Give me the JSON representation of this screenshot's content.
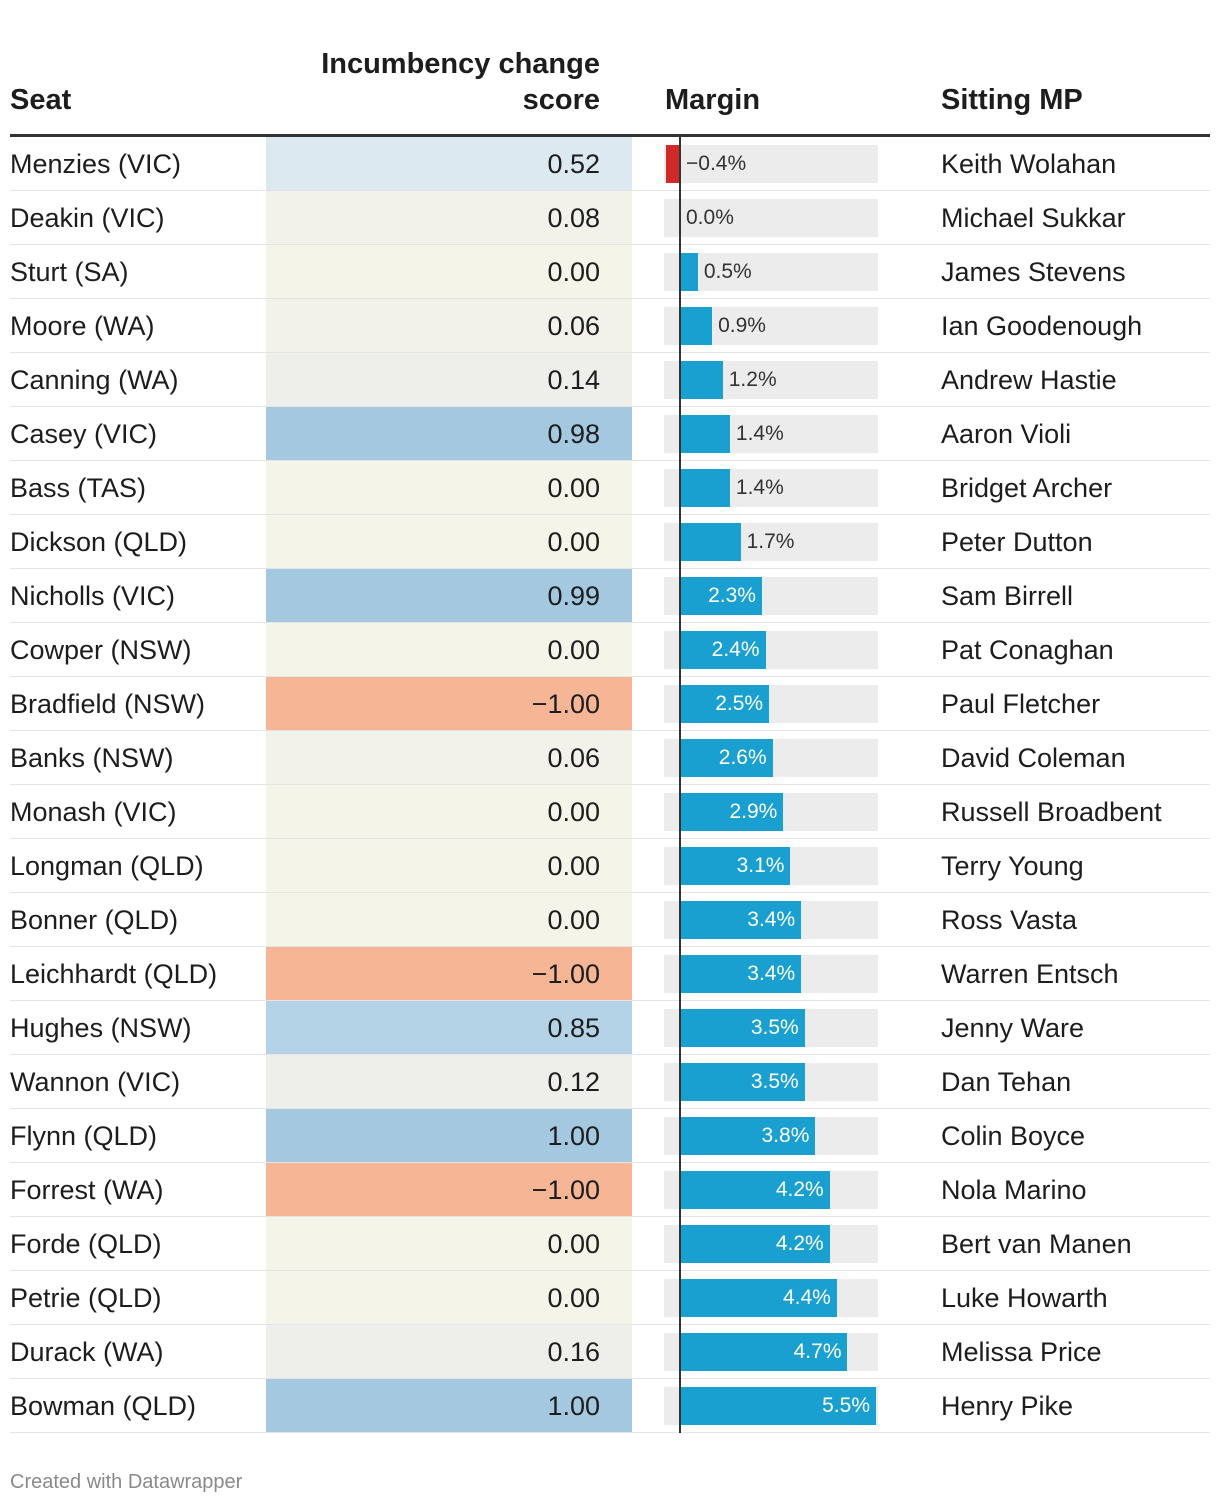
{
  "headers": {
    "seat": "Seat",
    "score_line1": "Incumbency change",
    "score_line2": "score",
    "margin": "Margin",
    "mp": "Sitting MP"
  },
  "credit": "Created with Datawrapper",
  "colors": {
    "positive_bar": "#1aa0d0",
    "negative_bar": "#cf2a27",
    "track": "#ececec"
  },
  "chart_data": {
    "type": "table",
    "columns": [
      "Seat",
      "Incumbency change score",
      "Margin",
      "Sitting MP"
    ],
    "margin_scale_max": 5.5,
    "rows": [
      {
        "seat": "Menzies (VIC)",
        "score": "0.52",
        "score_color": "#dce9f0",
        "margin": -0.4,
        "margin_label": "−0.4%",
        "mp": "Keith Wolahan"
      },
      {
        "seat": "Deakin (VIC)",
        "score": "0.08",
        "score_color": "#f2f2ea",
        "margin": 0.0,
        "margin_label": "0.0%",
        "mp": "Michael Sukkar"
      },
      {
        "seat": "Sturt (SA)",
        "score": "0.00",
        "score_color": "#f5f4e8",
        "margin": 0.5,
        "margin_label": "0.5%",
        "mp": "James Stevens"
      },
      {
        "seat": "Moore (WA)",
        "score": "0.06",
        "score_color": "#f2f2ea",
        "margin": 0.9,
        "margin_label": "0.9%",
        "mp": "Ian Goodenough"
      },
      {
        "seat": "Canning (WA)",
        "score": "0.14",
        "score_color": "#eeefea",
        "margin": 1.2,
        "margin_label": "1.2%",
        "mp": "Andrew Hastie"
      },
      {
        "seat": "Casey (VIC)",
        "score": "0.98",
        "score_color": "#a3c8e0",
        "margin": 1.4,
        "margin_label": "1.4%",
        "mp": "Aaron Violi"
      },
      {
        "seat": "Bass (TAS)",
        "score": "0.00",
        "score_color": "#f5f4e8",
        "margin": 1.4,
        "margin_label": "1.4%",
        "mp": "Bridget Archer"
      },
      {
        "seat": "Dickson (QLD)",
        "score": "0.00",
        "score_color": "#f5f4e8",
        "margin": 1.7,
        "margin_label": "1.7%",
        "mp": "Peter Dutton"
      },
      {
        "seat": "Nicholls (VIC)",
        "score": "0.99",
        "score_color": "#a3c8e0",
        "margin": 2.3,
        "margin_label": "2.3%",
        "mp": "Sam Birrell"
      },
      {
        "seat": "Cowper (NSW)",
        "score": "0.00",
        "score_color": "#f5f4e8",
        "margin": 2.4,
        "margin_label": "2.4%",
        "mp": "Pat Conaghan"
      },
      {
        "seat": "Bradfield (NSW)",
        "score": "−1.00",
        "score_color": "#f6b595",
        "margin": 2.5,
        "margin_label": "2.5%",
        "mp": "Paul Fletcher"
      },
      {
        "seat": "Banks (NSW)",
        "score": "0.06",
        "score_color": "#f2f2ea",
        "margin": 2.6,
        "margin_label": "2.6%",
        "mp": "David Coleman"
      },
      {
        "seat": "Monash (VIC)",
        "score": "0.00",
        "score_color": "#f5f4e8",
        "margin": 2.9,
        "margin_label": "2.9%",
        "mp": "Russell Broadbent"
      },
      {
        "seat": "Longman (QLD)",
        "score": "0.00",
        "score_color": "#f5f4e8",
        "margin": 3.1,
        "margin_label": "3.1%",
        "mp": "Terry Young"
      },
      {
        "seat": "Bonner (QLD)",
        "score": "0.00",
        "score_color": "#f5f4e8",
        "margin": 3.4,
        "margin_label": "3.4%",
        "mp": "Ross Vasta"
      },
      {
        "seat": "Leichhardt (QLD)",
        "score": "−1.00",
        "score_color": "#f6b595",
        "margin": 3.4,
        "margin_label": "3.4%",
        "mp": "Warren Entsch"
      },
      {
        "seat": "Hughes (NSW)",
        "score": "0.85",
        "score_color": "#b5d3e6",
        "margin": 3.5,
        "margin_label": "3.5%",
        "mp": "Jenny Ware"
      },
      {
        "seat": "Wannon (VIC)",
        "score": "0.12",
        "score_color": "#eeefea",
        "margin": 3.5,
        "margin_label": "3.5%",
        "mp": "Dan Tehan"
      },
      {
        "seat": "Flynn (QLD)",
        "score": "1.00",
        "score_color": "#a3c8e0",
        "margin": 3.8,
        "margin_label": "3.8%",
        "mp": "Colin Boyce"
      },
      {
        "seat": "Forrest (WA)",
        "score": "−1.00",
        "score_color": "#f6b595",
        "margin": 4.2,
        "margin_label": "4.2%",
        "mp": "Nola Marino"
      },
      {
        "seat": "Forde (QLD)",
        "score": "0.00",
        "score_color": "#f5f4e8",
        "margin": 4.2,
        "margin_label": "4.2%",
        "mp": "Bert van Manen"
      },
      {
        "seat": "Petrie (QLD)",
        "score": "0.00",
        "score_color": "#f5f4e8",
        "margin": 4.4,
        "margin_label": "4.4%",
        "mp": "Luke Howarth"
      },
      {
        "seat": "Durack (WA)",
        "score": "0.16",
        "score_color": "#eeefea",
        "margin": 4.7,
        "margin_label": "4.7%",
        "mp": "Melissa Price"
      },
      {
        "seat": "Bowman (QLD)",
        "score": "1.00",
        "score_color": "#a3c8e0",
        "margin": 5.5,
        "margin_label": "5.5%",
        "mp": "Henry Pike"
      }
    ]
  }
}
